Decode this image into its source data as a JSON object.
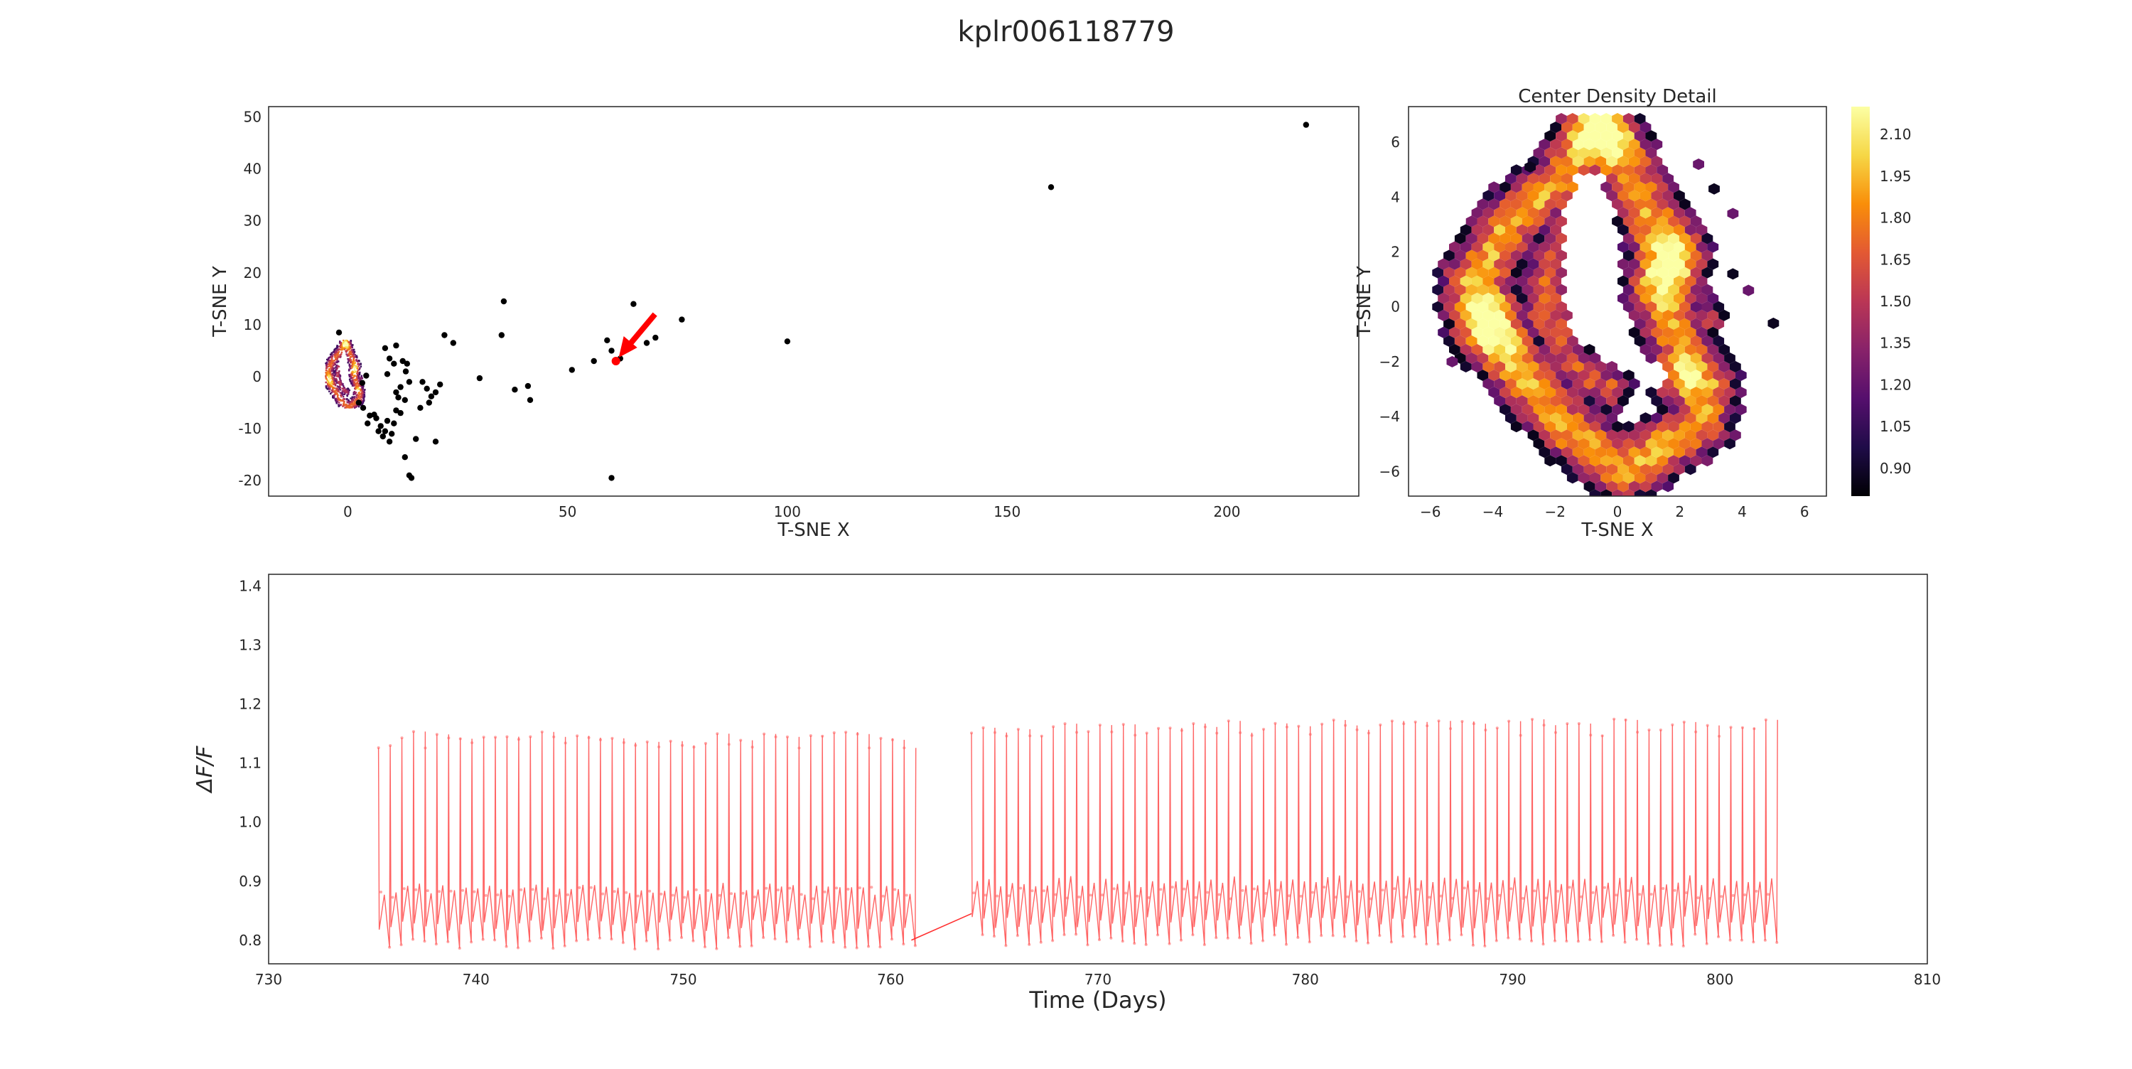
{
  "figure": {
    "title": "kplr006118779"
  },
  "colors": {
    "scatter_points": "#000000",
    "highlight": "#ff0000",
    "lightcurve": "#ff3030",
    "axes": "#262626",
    "colormap": [
      "#000004",
      "#1f0c48",
      "#550f6d",
      "#88226a",
      "#ba3655",
      "#e35933",
      "#f98e09",
      "#f6d746",
      "#fcffa4"
    ]
  },
  "chart_data": [
    {
      "type": "scatter",
      "xlabel": "T-SNE X",
      "ylabel": "T-SNE Y",
      "xlim": [
        -18,
        230
      ],
      "ylim": [
        -23,
        52
      ],
      "xticks": [
        0,
        50,
        100,
        150,
        200
      ],
      "yticks": [
        -20,
        -10,
        0,
        10,
        20,
        30,
        40,
        50
      ],
      "grid": false,
      "dense_cluster": {
        "x_range": [
          -5,
          4
        ],
        "y_range": [
          -6,
          7
        ]
      },
      "points": [
        [
          218,
          48.5
        ],
        [
          160,
          36.5
        ],
        [
          100,
          6.8
        ],
        [
          76,
          11
        ],
        [
          70,
          7.5
        ],
        [
          68,
          6.5
        ],
        [
          65,
          14
        ],
        [
          59,
          7
        ],
        [
          60,
          5
        ],
        [
          62,
          3.5
        ],
        [
          56,
          3
        ],
        [
          51,
          1.3
        ],
        [
          41,
          -1.8
        ],
        [
          41.5,
          -4.5
        ],
        [
          38,
          -2.5
        ],
        [
          35.5,
          14.5
        ],
        [
          35,
          8
        ],
        [
          30,
          -0.3
        ],
        [
          24,
          6.5
        ],
        [
          22,
          8
        ],
        [
          21,
          -1.5
        ],
        [
          20,
          -3
        ],
        [
          19,
          -3.8
        ],
        [
          18.5,
          -5
        ],
        [
          18,
          -2.3
        ],
        [
          17,
          -1
        ],
        [
          16.5,
          -6
        ],
        [
          15.5,
          -12
        ],
        [
          13,
          -4.5
        ],
        [
          12,
          -7
        ],
        [
          11.5,
          -4
        ],
        [
          11,
          -6.5
        ],
        [
          10.5,
          -9
        ],
        [
          10,
          -11
        ],
        [
          9.5,
          -12.5
        ],
        [
          9,
          -8.5
        ],
        [
          8.5,
          -10.5
        ],
        [
          8,
          -11.5
        ],
        [
          7.5,
          -9.5
        ],
        [
          7,
          -10.5
        ],
        [
          6.5,
          -8
        ],
        [
          6,
          -7.3
        ],
        [
          5,
          -7.5
        ],
        [
          4.5,
          -9
        ],
        [
          3.5,
          -6
        ],
        [
          2.5,
          -5
        ],
        [
          8.5,
          5.5
        ],
        [
          9.5,
          3.5
        ],
        [
          10.5,
          2.5
        ],
        [
          11,
          6
        ],
        [
          12.5,
          3
        ],
        [
          13.2,
          1
        ],
        [
          13.5,
          2.5
        ],
        [
          14,
          -1
        ],
        [
          12,
          -2
        ],
        [
          11,
          -3
        ],
        [
          -2,
          8.5
        ],
        [
          13,
          -15.5
        ],
        [
          14,
          -19
        ],
        [
          14.5,
          -19.5
        ],
        [
          20,
          -12.5
        ],
        [
          60,
          -19.5
        ],
        [
          9,
          0.5
        ],
        [
          4.2,
          0.2
        ],
        [
          3.3,
          -1.2
        ]
      ],
      "highlight_point": [
        61,
        3
      ]
    },
    {
      "type": "heatmap",
      "title": "Center Density Detail",
      "xlabel": "T-SNE X",
      "ylabel": "T-SNE Y",
      "xlim": [
        -6.7,
        6.7
      ],
      "ylim": [
        -6.9,
        7.3
      ],
      "xticks": [
        -6,
        -4,
        -2,
        0,
        2,
        4,
        6
      ],
      "yticks": [
        -6,
        -4,
        -2,
        0,
        2,
        4,
        6
      ],
      "colorbar": {
        "min": 0.8,
        "max": 2.2,
        "ticks": [
          "0.90",
          "1.05",
          "1.20",
          "1.35",
          "1.50",
          "1.65",
          "1.80",
          "1.95",
          "2.10"
        ]
      },
      "gridsize_hint": 28
    },
    {
      "type": "line",
      "xlabel": "Time (Days)",
      "ylabel": "ΔF/F",
      "xlim": [
        730,
        810
      ],
      "ylim": [
        0.76,
        1.42
      ],
      "xticks": [
        730,
        740,
        750,
        760,
        770,
        780,
        790,
        800,
        810
      ],
      "yticks": [
        "0.8",
        "0.9",
        "1.0",
        "1.1",
        "1.2",
        "1.3",
        "1.4"
      ],
      "segments": [
        {
          "t_start": 735.3,
          "t_end": 761.0,
          "period": 0.5634,
          "min": 0.795,
          "max": 1.14
        },
        {
          "t_start": 763.9,
          "t_end": 802.3,
          "period": 0.5634,
          "min": 0.8,
          "max": 1.16
        }
      ],
      "gap_line": [
        [
          761.0,
          0.8
        ],
        [
          763.9,
          0.845
        ]
      ]
    }
  ]
}
